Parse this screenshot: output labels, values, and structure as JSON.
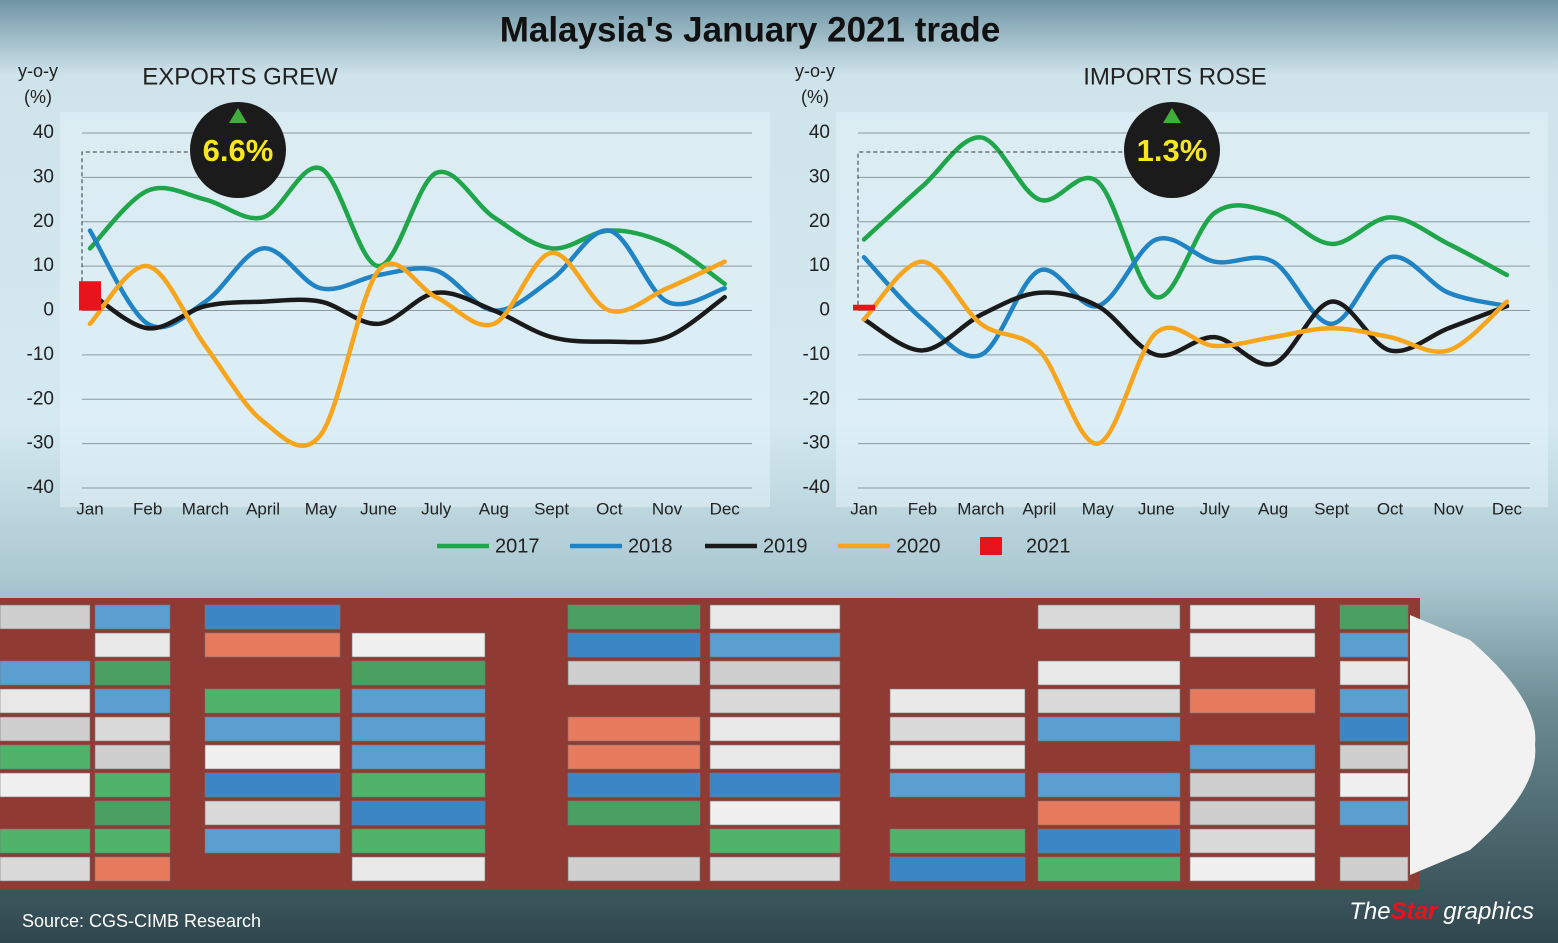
{
  "title": "Malaysia's January 2021 trade",
  "source": "Source: CGS-CIMB Research",
  "credit": {
    "brand": "The",
    "brand_accent": "Star",
    "suffix": "graphics"
  },
  "chart_data": [
    {
      "type": "line",
      "title": "EXPORTS GREW",
      "ylabel": [
        "y-o-y",
        "(%)"
      ],
      "annotation": "6.6%",
      "categories": [
        "Jan",
        "Feb",
        "March",
        "April",
        "May",
        "June",
        "July",
        "Aug",
        "Sept",
        "Oct",
        "Nov",
        "Dec"
      ],
      "ylim": [
        -40,
        40
      ],
      "yticks": [
        -40,
        -30,
        -20,
        -10,
        0,
        10,
        20,
        30,
        40
      ],
      "grid": true,
      "series": [
        {
          "name": "2017",
          "color": "#1fa54a",
          "values": [
            14,
            27,
            25,
            21,
            32,
            10,
            31,
            21,
            14,
            18,
            15,
            6
          ]
        },
        {
          "name": "2018",
          "color": "#1f83c4",
          "values": [
            18,
            -3,
            2,
            14,
            5,
            8,
            9,
            0,
            7,
            18,
            2,
            5
          ]
        },
        {
          "name": "2019",
          "color": "#1a1a1a",
          "values": [
            4,
            -4,
            1,
            2,
            2,
            -3,
            4,
            0,
            -6,
            -7,
            -6,
            3
          ]
        },
        {
          "name": "2020",
          "color": "#f7a51c",
          "values": [
            -3,
            10,
            -8,
            -25,
            -28,
            9,
            3,
            -3,
            13,
            0,
            5,
            11
          ]
        },
        {
          "name": "2021",
          "color": "#e8141b",
          "type": "bar",
          "values": [
            6.6,
            null,
            null,
            null,
            null,
            null,
            null,
            null,
            null,
            null,
            null,
            null
          ]
        }
      ]
    },
    {
      "type": "line",
      "title": "IMPORTS ROSE",
      "ylabel": [
        "y-o-y",
        "(%)"
      ],
      "annotation": "1.3%",
      "categories": [
        "Jan",
        "Feb",
        "March",
        "April",
        "May",
        "June",
        "July",
        "Aug",
        "Sept",
        "Oct",
        "Nov",
        "Dec"
      ],
      "ylim": [
        -40,
        40
      ],
      "yticks": [
        -40,
        -30,
        -20,
        -10,
        0,
        10,
        20,
        30,
        40
      ],
      "grid": true,
      "series": [
        {
          "color": "#1fa54a",
          "values": [
            16,
            28,
            39,
            25,
            29,
            3,
            22,
            22,
            15,
            21,
            15,
            8
          ]
        },
        {
          "color": "#1f83c4",
          "values": [
            12,
            -2,
            -10,
            9,
            1,
            16,
            11,
            11,
            -3,
            12,
            4,
            1
          ]
        },
        {
          "color": "#1a1a1a",
          "values": [
            -2,
            -9,
            -1,
            4,
            1,
            -10,
            -6,
            -12,
            2,
            -9,
            -4,
            1
          ]
        },
        {
          "color": "#f7a51c",
          "values": [
            -2,
            11,
            -3,
            -9,
            -30,
            -5,
            -8,
            -6,
            -4,
            -6,
            -9,
            2
          ]
        },
        {
          "color": "#e8141b",
          "type": "bar",
          "values": [
            1.3,
            null,
            null,
            null,
            null,
            null,
            null,
            null,
            null,
            null,
            null,
            null
          ]
        }
      ]
    }
  ]
}
